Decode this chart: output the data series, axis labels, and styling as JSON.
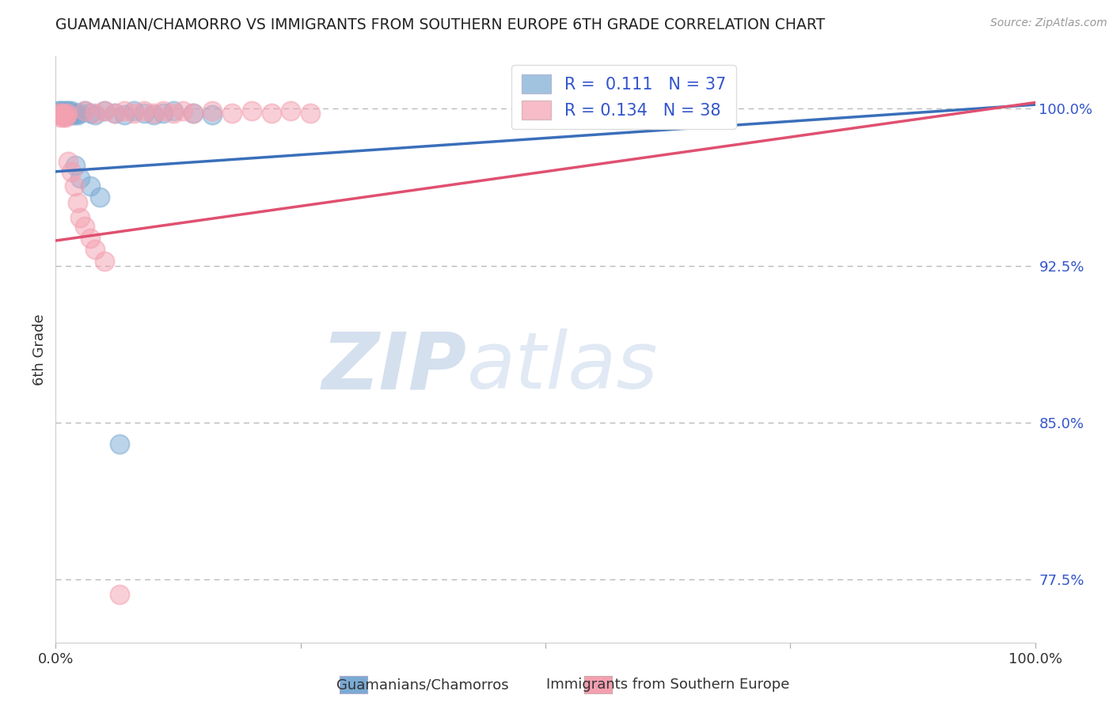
{
  "title": "GUAMANIAN/CHAMORRO VS IMMIGRANTS FROM SOUTHERN EUROPE 6TH GRADE CORRELATION CHART",
  "source": "Source: ZipAtlas.com",
  "ylabel": "6th Grade",
  "ytick_labels": [
    "77.5%",
    "85.0%",
    "92.5%",
    "100.0%"
  ],
  "ytick_values": [
    0.775,
    0.85,
    0.925,
    1.0
  ],
  "xmin": 0.0,
  "xmax": 1.0,
  "ymin": 0.745,
  "ymax": 1.025,
  "blue_label": "Guamanians/Chamorros",
  "pink_label": "Immigrants from Southern Europe",
  "blue_R": "0.111",
  "blue_N": "37",
  "pink_R": "0.134",
  "pink_N": "38",
  "blue_color": "#7aaad4",
  "pink_color": "#f4a0b0",
  "blue_points": [
    [
      0.003,
      0.999
    ],
    [
      0.004,
      0.998
    ],
    [
      0.005,
      0.999
    ],
    [
      0.006,
      0.997
    ],
    [
      0.007,
      0.998
    ],
    [
      0.008,
      0.999
    ],
    [
      0.009,
      0.997
    ],
    [
      0.01,
      0.999
    ],
    [
      0.011,
      0.998
    ],
    [
      0.012,
      0.997
    ],
    [
      0.013,
      0.999
    ],
    [
      0.014,
      0.998
    ],
    [
      0.015,
      0.997
    ],
    [
      0.016,
      0.999
    ],
    [
      0.017,
      0.998
    ],
    [
      0.018,
      0.997
    ],
    [
      0.02,
      0.998
    ],
    [
      0.022,
      0.997
    ],
    [
      0.024,
      0.998
    ],
    [
      0.03,
      0.999
    ],
    [
      0.035,
      0.998
    ],
    [
      0.04,
      0.997
    ],
    [
      0.05,
      0.999
    ],
    [
      0.06,
      0.998
    ],
    [
      0.07,
      0.997
    ],
    [
      0.08,
      0.999
    ],
    [
      0.09,
      0.998
    ],
    [
      0.1,
      0.997
    ],
    [
      0.11,
      0.998
    ],
    [
      0.12,
      0.999
    ],
    [
      0.14,
      0.998
    ],
    [
      0.16,
      0.997
    ],
    [
      0.02,
      0.973
    ],
    [
      0.025,
      0.967
    ],
    [
      0.035,
      0.963
    ],
    [
      0.045,
      0.958
    ],
    [
      0.065,
      0.84
    ]
  ],
  "pink_points": [
    [
      0.003,
      0.997
    ],
    [
      0.004,
      0.998
    ],
    [
      0.005,
      0.996
    ],
    [
      0.006,
      0.997
    ],
    [
      0.007,
      0.998
    ],
    [
      0.008,
      0.996
    ],
    [
      0.009,
      0.997
    ],
    [
      0.01,
      0.996
    ],
    [
      0.011,
      0.997
    ],
    [
      0.012,
      0.998
    ],
    [
      0.03,
      0.999
    ],
    [
      0.04,
      0.998
    ],
    [
      0.05,
      0.999
    ],
    [
      0.06,
      0.998
    ],
    [
      0.07,
      0.999
    ],
    [
      0.08,
      0.998
    ],
    [
      0.09,
      0.999
    ],
    [
      0.1,
      0.998
    ],
    [
      0.11,
      0.999
    ],
    [
      0.12,
      0.998
    ],
    [
      0.13,
      0.999
    ],
    [
      0.14,
      0.998
    ],
    [
      0.16,
      0.999
    ],
    [
      0.18,
      0.998
    ],
    [
      0.2,
      0.999
    ],
    [
      0.22,
      0.998
    ],
    [
      0.24,
      0.999
    ],
    [
      0.26,
      0.998
    ],
    [
      0.013,
      0.975
    ],
    [
      0.016,
      0.97
    ],
    [
      0.019,
      0.963
    ],
    [
      0.022,
      0.955
    ],
    [
      0.025,
      0.948
    ],
    [
      0.03,
      0.944
    ],
    [
      0.035,
      0.938
    ],
    [
      0.04,
      0.933
    ],
    [
      0.05,
      0.927
    ],
    [
      0.065,
      0.768
    ]
  ],
  "blue_trend_x": [
    0.0,
    1.0
  ],
  "blue_trend_y": [
    0.97,
    1.002
  ],
  "pink_trend_x": [
    0.0,
    1.0
  ],
  "pink_trend_y": [
    0.937,
    1.003
  ],
  "watermark_zip": "ZIP",
  "watermark_atlas": "atlas",
  "background_color": "#ffffff",
  "grid_color": "#bbbbbb",
  "legend_blue_text": "R =  0.111   N = 37",
  "legend_pink_text": "R = 0.134   N = 38"
}
